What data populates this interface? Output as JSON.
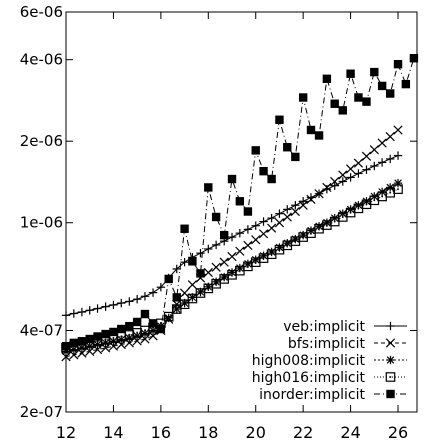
{
  "chart_data": {
    "type": "line",
    "title": "",
    "xlabel": "",
    "ylabel": "",
    "x_scale": "linear",
    "y_scale": "log",
    "xlim": [
      12,
      26.8
    ],
    "ylim": [
      2e-07,
      6e-06
    ],
    "x_ticks": [
      12,
      14,
      16,
      18,
      20,
      22,
      24,
      26
    ],
    "x_tick_labels": [
      "12",
      "14",
      "16",
      "18",
      "20",
      "22",
      "24",
      "26"
    ],
    "y_ticks": [
      2e-07,
      4e-07,
      1e-06,
      2e-06,
      4e-06,
      6e-06
    ],
    "y_tick_labels": [
      "2e-07",
      "4e-07",
      "1e-06",
      "2e-06",
      "4e-06",
      "6e-06"
    ],
    "grid": false,
    "legend_position": "bottom-right",
    "x": [
      12,
      12.33,
      12.67,
      13,
      13.33,
      13.67,
      14,
      14.33,
      14.67,
      15,
      15.33,
      15.67,
      16,
      16.33,
      16.67,
      17,
      17.33,
      17.67,
      18,
      18.33,
      18.67,
      19,
      19.33,
      19.67,
      20,
      20.33,
      20.67,
      21,
      21.33,
      21.67,
      22,
      22.33,
      22.67,
      23,
      23.33,
      23.67,
      24,
      24.33,
      24.67,
      25,
      25.33,
      25.67,
      26,
      26.33,
      26.67
    ],
    "series": [
      {
        "name": "veb:implicit",
        "marker": "plus",
        "dash": "",
        "values": [
          4.55e-07,
          4.62e-07,
          4.68e-07,
          4.75e-07,
          4.82e-07,
          4.9e-07,
          4.97e-07,
          5.05e-07,
          5.12e-07,
          5.22e-07,
          5.35e-07,
          5.52e-07,
          5.78e-07,
          6.25e-07,
          6.75e-07,
          7.15e-07,
          7.45e-07,
          7.72e-07,
          8e-07,
          8.28e-07,
          8.55e-07,
          8.85e-07,
          9.15e-07,
          9.45e-07,
          9.75e-07,
          1.01e-06,
          1.04e-06,
          1.08e-06,
          1.12e-06,
          1.16e-06,
          1.2e-06,
          1.24e-06,
          1.28e-06,
          1.33e-06,
          1.37e-06,
          1.42e-06,
          1.47e-06,
          1.52e-06,
          1.57e-06,
          1.62e-06,
          1.67e-06,
          1.72e-06,
          1.77e-06,
          null,
          null
        ]
      },
      {
        "name": "bfs:implicit",
        "marker": "cross",
        "dash": "4,3",
        "values": [
          3.2e-07,
          3.25e-07,
          3.3e-07,
          3.35e-07,
          3.4e-07,
          3.45e-07,
          3.5e-07,
          3.55e-07,
          3.6e-07,
          3.66e-07,
          3.72e-07,
          3.82e-07,
          4e-07,
          4.4e-07,
          5e-07,
          5.5e-07,
          5.9e-07,
          6.25e-07,
          6.55e-07,
          6.85e-07,
          7.15e-07,
          7.5e-07,
          7.85e-07,
          8.25e-07,
          8.65e-07,
          9.1e-07,
          9.55e-07,
          1e-06,
          1.05e-06,
          1.1e-06,
          1.16e-06,
          1.22e-06,
          1.28e-06,
          1.35e-06,
          1.42e-06,
          1.5e-06,
          1.58e-06,
          1.66e-06,
          1.76e-06,
          1.86e-06,
          1.97e-06,
          2.08e-06,
          2.2e-06,
          null,
          null
        ]
      },
      {
        "name": "high008:implicit",
        "marker": "star",
        "dash": "2,2",
        "values": [
          3.35e-07,
          3.4e-07,
          3.45e-07,
          3.5e-07,
          3.55e-07,
          3.6e-07,
          3.65e-07,
          3.7e-07,
          3.75e-07,
          3.82e-07,
          3.9e-07,
          4e-07,
          4.15e-07,
          4.45e-07,
          4.8e-07,
          5.05e-07,
          5.3e-07,
          5.55e-07,
          5.8e-07,
          6.05e-07,
          6.3e-07,
          6.55e-07,
          6.8e-07,
          7.05e-07,
          7.3e-07,
          7.55e-07,
          7.8e-07,
          8.1e-07,
          8.4e-07,
          8.7e-07,
          9e-07,
          9.35e-07,
          9.7e-07,
          1e-06,
          1.04e-06,
          1.08e-06,
          1.12e-06,
          1.16e-06,
          1.2e-06,
          1.25e-06,
          1.3e-06,
          1.35e-06,
          1.4e-06,
          null,
          null
        ]
      },
      {
        "name": "high016:implicit",
        "marker": "square-dot",
        "dash": "1,2",
        "values": [
          3.45e-07,
          3.5e-07,
          3.55e-07,
          3.6e-07,
          3.65e-07,
          3.7e-07,
          3.75e-07,
          3.8e-07,
          3.85e-07,
          3.92e-07,
          4e-07,
          4.1e-07,
          4.25e-07,
          4.5e-07,
          4.8e-07,
          5e-07,
          5.25e-07,
          5.5e-07,
          5.72e-07,
          5.95e-07,
          6.2e-07,
          6.42e-07,
          6.65e-07,
          6.9e-07,
          7.15e-07,
          7.4e-07,
          7.65e-07,
          7.95e-07,
          8.25e-07,
          8.55e-07,
          8.85e-07,
          9.15e-07,
          9.5e-07,
          9.8e-07,
          1.01e-06,
          1.05e-06,
          1.09e-06,
          1.13e-06,
          1.17e-06,
          1.21e-06,
          1.25e-06,
          1.29e-06,
          1.33e-06,
          null,
          null
        ]
      },
      {
        "name": "inorder:implicit",
        "marker": "filled-square",
        "dash": "6,3,1,3",
        "values": [
          3.5e-07,
          3.6e-07,
          3.65e-07,
          3.72e-07,
          3.8e-07,
          3.88e-07,
          3.95e-07,
          4.05e-07,
          4.15e-07,
          4.3e-07,
          4.6e-07,
          4.25e-07,
          4.05e-07,
          6.2e-07,
          5.3e-07,
          9.5e-07,
          7.2e-07,
          6.5e-07,
          1.35e-06,
          1.05e-06,
          9e-07,
          1.45e-06,
          1.2e-06,
          1.1e-06,
          1.85e-06,
          1.55e-06,
          1.45e-06,
          2.4e-06,
          1.9e-06,
          1.75e-06,
          2.9e-06,
          2.2e-06,
          2.1e-06,
          3.4e-06,
          2.75e-06,
          2.6e-06,
          3.55e-06,
          2.9e-06,
          2.8e-06,
          3.6e-06,
          3.2e-06,
          3e-06,
          3.85e-06,
          3.25e-06,
          4.05e-06
        ]
      }
    ]
  }
}
